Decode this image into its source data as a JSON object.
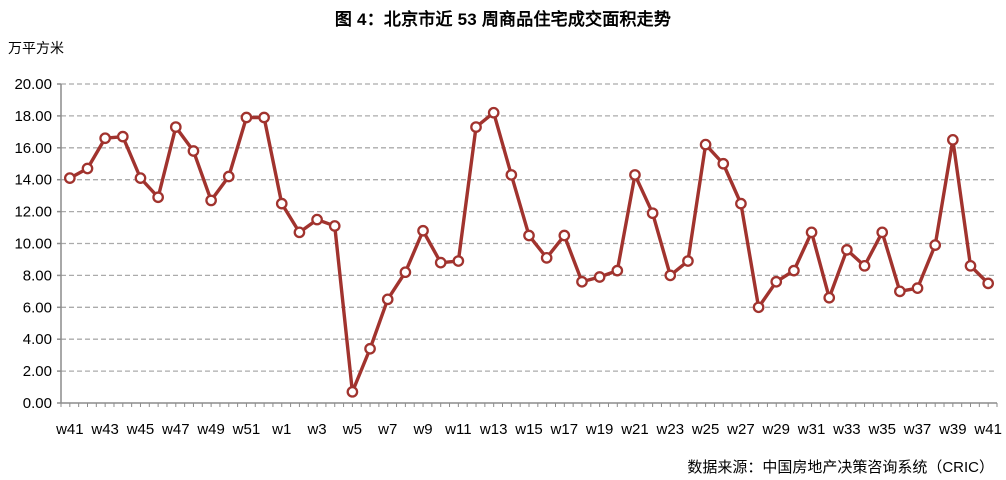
{
  "title": "图 4：北京市近 53 周商品住宅成交面积走势",
  "y_axis_unit": "万平方米",
  "source": "数据来源：中国房地产决策咨询系统（CRIC）",
  "chart_data": {
    "type": "line",
    "title": "图 4：北京市近 53 周商品住宅成交面积走势",
    "xlabel": "",
    "ylabel": "万平方米",
    "ylim": [
      0,
      20
    ],
    "y_tick_step": 2,
    "grid": "horizontal-dashed",
    "legend": "none",
    "categories": [
      "w41",
      "w42",
      "w43",
      "w44",
      "w45",
      "w46",
      "w47",
      "w48",
      "w49",
      "w50",
      "w51",
      "w52",
      "w1",
      "w2",
      "w3",
      "w4",
      "w5",
      "w6",
      "w7",
      "w8",
      "w9",
      "w10",
      "w11",
      "w12",
      "w13",
      "w14",
      "w15",
      "w16",
      "w17",
      "w18",
      "w19",
      "w20",
      "w21",
      "w22",
      "w23",
      "w24",
      "w25",
      "w26",
      "w27",
      "w28",
      "w29",
      "w30",
      "w31",
      "w32",
      "w33",
      "w34",
      "w35",
      "w36",
      "w37",
      "w38",
      "w39",
      "w40",
      "w41"
    ],
    "values": [
      14.1,
      14.7,
      16.6,
      16.7,
      14.1,
      12.9,
      17.3,
      15.8,
      12.7,
      14.2,
      17.9,
      17.9,
      12.5,
      10.7,
      11.5,
      11.1,
      0.7,
      3.4,
      6.5,
      8.2,
      10.8,
      8.8,
      8.9,
      17.3,
      18.2,
      14.3,
      10.5,
      9.1,
      10.5,
      7.6,
      7.9,
      8.3,
      14.3,
      11.9,
      8.0,
      8.9,
      16.2,
      15.0,
      12.5,
      6.0,
      7.6,
      8.3,
      10.7,
      6.6,
      9.6,
      8.6,
      10.7,
      7.0,
      7.2,
      9.9,
      16.5,
      8.6,
      7.5
    ],
    "x_tick_labels": [
      "w41",
      "w43",
      "w45",
      "w47",
      "w49",
      "w51",
      "w1",
      "w3",
      "w5",
      "w7",
      "w9",
      "w11",
      "w13",
      "w15",
      "w17",
      "w19",
      "w21",
      "w23",
      "w25",
      "w27",
      "w29",
      "w31",
      "w33",
      "w35",
      "w37",
      "w39",
      "w41"
    ],
    "colors": {
      "line": "#A1332E",
      "marker_fill": "#FFFFFF",
      "grid": "#ABABAB",
      "axis": "#8C8C8C",
      "text": "#000000"
    }
  }
}
